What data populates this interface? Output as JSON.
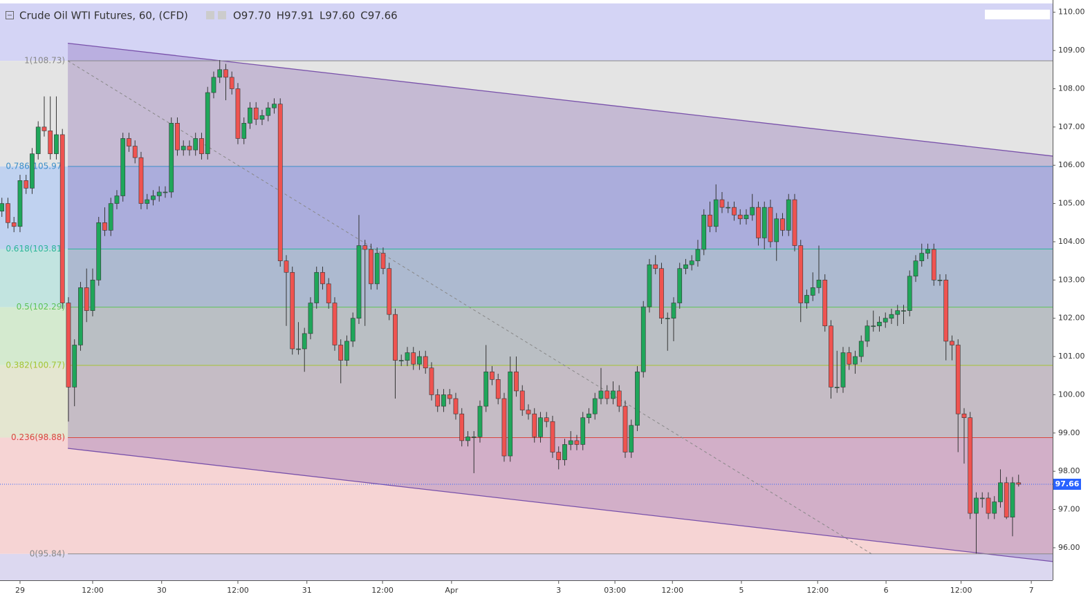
{
  "chart_data": {
    "type": "candlestick",
    "title": "Crude Oil WTI Futures, 60, (CFD)",
    "ohlc_labels": [
      "O97.70",
      "H97.91",
      "L97.60",
      "C97.66"
    ],
    "up_color": "#1fa65a",
    "down_color": "#ef5350",
    "wick_color": "#333333",
    "x": [
      0,
      1,
      2,
      3,
      4,
      5,
      6,
      7,
      8,
      9,
      10,
      11,
      12,
      13,
      14,
      15,
      16,
      17,
      18,
      19,
      20,
      21,
      22,
      23,
      24,
      25,
      26,
      27,
      28,
      29,
      30,
      31,
      32,
      33,
      34,
      35,
      36,
      37,
      38,
      39,
      40,
      41,
      42,
      43,
      44,
      45,
      46,
      47,
      48,
      49,
      50,
      51,
      52,
      53,
      54,
      55,
      56,
      57,
      58,
      59,
      60,
      61,
      62,
      63,
      64,
      65,
      66,
      67,
      68,
      69,
      70,
      71,
      72,
      73,
      74,
      75,
      76,
      77,
      78,
      79,
      80,
      81,
      82,
      83,
      84,
      85,
      86,
      87,
      88,
      89,
      90,
      91,
      92,
      93,
      94,
      95,
      96,
      97,
      98,
      99,
      100,
      101,
      102,
      103,
      104,
      105,
      106,
      107,
      108,
      109,
      110,
      111,
      112,
      113,
      114,
      115,
      116,
      117,
      118,
      119,
      120,
      121,
      122,
      123,
      124,
      125,
      126,
      127,
      128,
      129,
      130,
      131,
      132,
      133,
      134,
      135,
      136,
      137,
      138,
      139,
      140,
      141,
      142,
      143,
      144,
      145,
      146,
      147,
      148,
      149,
      150,
      151,
      152,
      153,
      154,
      155,
      156,
      157,
      158,
      159,
      160,
      161,
      162,
      163,
      164,
      165,
      166,
      167,
      168
    ],
    "candles": [
      [
        104.8,
        105.15,
        104.65,
        105
      ],
      [
        105,
        105.15,
        104.35,
        104.5
      ],
      [
        104.5,
        104.65,
        104.25,
        104.4
      ],
      [
        104.4,
        105.75,
        104.25,
        105.6
      ],
      [
        105.6,
        105.75,
        105.25,
        105.4
      ],
      [
        105.4,
        106.45,
        105.25,
        106.3
      ],
      [
        106.3,
        107.15,
        106.15,
        107
      ],
      [
        107,
        107.8,
        106.75,
        106.9
      ],
      [
        106.9,
        107.8,
        106.15,
        106.3
      ],
      [
        106.3,
        107.8,
        106.15,
        106.8
      ],
      [
        106.8,
        106.95,
        102.25,
        102.4
      ],
      [
        102.4,
        102.55,
        99.3,
        100.2
      ],
      [
        100.2,
        101.45,
        99.7,
        101.3
      ],
      [
        101.3,
        102.95,
        101.15,
        102.8
      ],
      [
        102.8,
        103.3,
        101.9,
        102.2
      ],
      [
        102.2,
        103.3,
        102.05,
        103
      ],
      [
        103,
        104.65,
        102.85,
        104.5
      ],
      [
        104.5,
        104.9,
        104.15,
        104.3
      ],
      [
        104.3,
        105.15,
        104.15,
        105
      ],
      [
        105,
        105.35,
        104.85,
        105.2
      ],
      [
        105.2,
        106.85,
        105.05,
        106.7
      ],
      [
        106.7,
        106.85,
        106.35,
        106.5
      ],
      [
        106.5,
        106.65,
        106.05,
        106.2
      ],
      [
        106.2,
        106.35,
        104.85,
        105
      ],
      [
        105,
        105.25,
        104.85,
        105.1
      ],
      [
        105.1,
        105.35,
        104.95,
        105.2
      ],
      [
        105.2,
        105.45,
        105.05,
        105.3
      ],
      [
        105.3,
        105.45,
        105.15,
        105.3
      ],
      [
        105.3,
        107.25,
        105.15,
        107.1
      ],
      [
        107.1,
        107.25,
        106.25,
        106.4
      ],
      [
        106.4,
        106.65,
        106.25,
        106.5
      ],
      [
        106.5,
        106.65,
        106.25,
        106.4
      ],
      [
        106.4,
        106.85,
        106.25,
        106.7
      ],
      [
        106.7,
        106.85,
        106.15,
        106.3
      ],
      [
        106.3,
        108.05,
        106.15,
        107.9
      ],
      [
        107.9,
        108.45,
        107.75,
        108.3
      ],
      [
        108.3,
        108.75,
        108.15,
        108.5
      ],
      [
        108.5,
        108.65,
        107.7,
        108.3
      ],
      [
        108.3,
        108.45,
        107.85,
        108
      ],
      [
        108,
        108.15,
        106.55,
        106.7
      ],
      [
        106.7,
        107.25,
        106.55,
        107.1
      ],
      [
        107.1,
        107.65,
        106.95,
        107.5
      ],
      [
        107.5,
        107.65,
        107.05,
        107.2
      ],
      [
        107.2,
        107.45,
        107.05,
        107.3
      ],
      [
        107.3,
        107.65,
        107.15,
        107.5
      ],
      [
        107.5,
        107.75,
        107.35,
        107.6
      ],
      [
        107.6,
        107.75,
        103.35,
        103.5
      ],
      [
        103.5,
        103.65,
        101.8,
        103.2
      ],
      [
        103.2,
        103.35,
        101.05,
        101.2
      ],
      [
        101.2,
        101.9,
        101.05,
        101.2
      ],
      [
        101.2,
        101.75,
        100.6,
        101.6
      ],
      [
        101.6,
        102.55,
        101.45,
        102.4
      ],
      [
        102.4,
        103.35,
        102.25,
        103.2
      ],
      [
        103.2,
        103.35,
        102.75,
        102.9
      ],
      [
        102.9,
        103.05,
        102.25,
        102.4
      ],
      [
        102.4,
        102.55,
        101.15,
        101.3
      ],
      [
        101.3,
        101.45,
        100.3,
        100.9
      ],
      [
        100.9,
        101.55,
        100.75,
        101.4
      ],
      [
        101.4,
        102.15,
        101.25,
        102
      ],
      [
        102,
        104.7,
        101.85,
        103.9
      ],
      [
        103.9,
        104.05,
        101.8,
        103.8
      ],
      [
        103.8,
        103.95,
        102.75,
        102.9
      ],
      [
        102.9,
        103.85,
        102.75,
        103.7
      ],
      [
        103.7,
        103.85,
        103.15,
        103.3
      ],
      [
        103.3,
        103.45,
        101.95,
        102.1
      ],
      [
        102.1,
        102.25,
        99.9,
        100.9
      ],
      [
        100.9,
        101.05,
        100.75,
        100.9
      ],
      [
        100.9,
        101.25,
        100.75,
        101.1
      ],
      [
        101.1,
        101.25,
        100.65,
        100.8
      ],
      [
        100.8,
        101.15,
        100.65,
        101
      ],
      [
        101,
        101.15,
        100.55,
        100.7
      ],
      [
        100.7,
        100.85,
        99.85,
        100
      ],
      [
        100,
        100.15,
        99.55,
        99.7
      ],
      [
        99.7,
        100.15,
        99.55,
        100
      ],
      [
        100,
        100.15,
        99.75,
        99.9
      ],
      [
        99.9,
        100.05,
        99.35,
        99.5
      ],
      [
        99.5,
        99.65,
        98.65,
        98.8
      ],
      [
        98.8,
        99.05,
        98.65,
        98.9
      ],
      [
        98.9,
        99.05,
        97.95,
        98.9
      ],
      [
        98.9,
        99.85,
        98.75,
        99.7
      ],
      [
        99.7,
        101.3,
        99.55,
        100.6
      ],
      [
        100.6,
        100.75,
        100.25,
        100.4
      ],
      [
        100.4,
        100.55,
        99.75,
        99.9
      ],
      [
        99.9,
        100.05,
        98.25,
        98.4
      ],
      [
        98.4,
        101,
        98.25,
        100.6
      ],
      [
        100.6,
        101,
        99.95,
        100.1
      ],
      [
        100.1,
        100.25,
        99.45,
        99.6
      ],
      [
        99.6,
        99.75,
        99.35,
        99.5
      ],
      [
        99.5,
        99.65,
        98.75,
        98.9
      ],
      [
        98.9,
        99.55,
        98.75,
        99.4
      ],
      [
        99.4,
        99.55,
        99.15,
        99.3
      ],
      [
        99.3,
        99.45,
        98.35,
        98.5
      ],
      [
        98.5,
        98.65,
        98.05,
        98.3
      ],
      [
        98.3,
        98.85,
        98.15,
        98.7
      ],
      [
        98.7,
        99.05,
        98.55,
        98.8
      ],
      [
        98.8,
        98.95,
        98.55,
        98.7
      ],
      [
        98.7,
        99.55,
        98.55,
        99.4
      ],
      [
        99.4,
        99.65,
        99.25,
        99.5
      ],
      [
        99.5,
        100.05,
        99.35,
        99.9
      ],
      [
        99.9,
        100.7,
        99.75,
        100.1
      ],
      [
        100.1,
        100.25,
        99.75,
        99.9
      ],
      [
        99.9,
        100.35,
        99.75,
        100.1
      ],
      [
        100.1,
        100.25,
        99.55,
        99.7
      ],
      [
        99.7,
        99.85,
        98.35,
        98.5
      ],
      [
        98.5,
        99.35,
        98.35,
        99.2
      ],
      [
        99.2,
        100.75,
        99.05,
        100.6
      ],
      [
        100.6,
        102.45,
        100.45,
        102.3
      ],
      [
        102.3,
        103.55,
        102.15,
        103.4
      ],
      [
        103.4,
        103.65,
        103.15,
        103.3
      ],
      [
        103.3,
        103.45,
        101.85,
        102
      ],
      [
        102,
        102.15,
        101.15,
        102
      ],
      [
        102,
        102.55,
        101.4,
        102.4
      ],
      [
        102.4,
        103.45,
        102.25,
        103.3
      ],
      [
        103.3,
        103.55,
        103.15,
        103.4
      ],
      [
        103.4,
        103.65,
        103.25,
        103.5
      ],
      [
        103.5,
        104.05,
        103.35,
        103.8
      ],
      [
        103.8,
        104.85,
        103.65,
        104.7
      ],
      [
        104.7,
        105.05,
        104.25,
        104.4
      ],
      [
        104.4,
        105.5,
        104.25,
        105.1
      ],
      [
        105.1,
        105.3,
        104.75,
        104.9
      ],
      [
        104.9,
        105.05,
        104.75,
        104.9
      ],
      [
        104.9,
        105.05,
        104.55,
        104.7
      ],
      [
        104.7,
        104.85,
        104.45,
        104.6
      ],
      [
        104.6,
        104.85,
        104.45,
        104.7
      ],
      [
        104.7,
        105.25,
        104.55,
        104.9
      ],
      [
        104.9,
        105.05,
        103.9,
        104.1
      ],
      [
        104.1,
        105.05,
        103.8,
        104.9
      ],
      [
        104.9,
        105.1,
        103.85,
        104
      ],
      [
        104,
        104.75,
        103.5,
        104.6
      ],
      [
        104.6,
        104.75,
        104.15,
        104.3
      ],
      [
        104.3,
        105.25,
        104.15,
        105.1
      ],
      [
        105.1,
        105.25,
        103.75,
        103.9
      ],
      [
        103.9,
        104.05,
        101.9,
        102.4
      ],
      [
        102.4,
        102.75,
        102.25,
        102.6
      ],
      [
        102.6,
        103.2,
        102.45,
        102.8
      ],
      [
        102.8,
        103.9,
        102.65,
        103
      ],
      [
        103,
        103.15,
        101.65,
        101.8
      ],
      [
        101.8,
        101.95,
        99.9,
        100.2
      ],
      [
        100.2,
        101.15,
        100.05,
        100.2
      ],
      [
        100.2,
        101.25,
        100.05,
        101.1
      ],
      [
        101.1,
        101.25,
        100.65,
        100.8
      ],
      [
        100.8,
        101.15,
        100.55,
        101
      ],
      [
        101,
        101.55,
        100.85,
        101.4
      ],
      [
        101.4,
        101.95,
        101.25,
        101.8
      ],
      [
        101.8,
        102.2,
        101.65,
        101.8
      ],
      [
        101.8,
        102.05,
        101.65,
        101.9
      ],
      [
        101.9,
        102.15,
        101.75,
        102
      ],
      [
        102,
        102.25,
        101.85,
        102.1
      ],
      [
        102.1,
        102.35,
        101.8,
        102.2
      ],
      [
        102.2,
        102.35,
        101.85,
        102.2
      ],
      [
        102.2,
        103.25,
        102.05,
        103.1
      ],
      [
        103.1,
        103.65,
        102.95,
        103.5
      ],
      [
        103.5,
        103.95,
        103.35,
        103.7
      ],
      [
        103.7,
        103.95,
        103.55,
        103.8
      ],
      [
        103.8,
        103.95,
        102.85,
        103
      ],
      [
        103,
        103.15,
        102.85,
        103
      ],
      [
        103,
        103.15,
        100.9,
        101.4
      ],
      [
        101.4,
        101.55,
        100.9,
        101.3
      ],
      [
        101.3,
        101.45,
        98.5,
        99.5
      ],
      [
        99.5,
        99.65,
        98.2,
        99.4
      ],
      [
        99.4,
        99.55,
        96.75,
        96.9
      ],
      [
        96.9,
        97.45,
        95.85,
        97.3
      ],
      [
        97.3,
        97.45,
        97.05,
        97.3
      ],
      [
        97.3,
        97.45,
        96.75,
        96.9
      ],
      [
        96.9,
        97.35,
        96.75,
        97.2
      ],
      [
        97.2,
        98.05,
        97.05,
        97.7
      ],
      [
        97.7,
        97.85,
        96.75,
        96.8
      ],
      [
        96.8,
        97.85,
        96.3,
        97.7
      ],
      [
        97.7,
        97.91,
        97.6,
        97.66
      ]
    ],
    "xlim": [
      -0.31,
      173.63
    ],
    "xticks": [
      {
        "value": 3,
        "label": "29"
      },
      {
        "value": 15,
        "label": "12:00"
      },
      {
        "value": 26.4,
        "label": "30"
      },
      {
        "value": 39,
        "label": "12:00"
      },
      {
        "value": 50.4,
        "label": "31"
      },
      {
        "value": 62.9,
        "label": "12:00"
      },
      {
        "value": 74.3,
        "label": "Apr"
      },
      {
        "value": 92,
        "label": "3"
      },
      {
        "value": 101.3,
        "label": "03:00"
      },
      {
        "value": 110.8,
        "label": "12:00"
      },
      {
        "value": 122.2,
        "label": "5"
      },
      {
        "value": 134.8,
        "label": "12:00"
      },
      {
        "value": 146.1,
        "label": "6"
      },
      {
        "value": 158.5,
        "label": "12:00"
      },
      {
        "value": 170.1,
        "label": "7"
      }
    ],
    "ylim": [
      95.15,
      110.23
    ],
    "yticks": [
      {
        "value": 96,
        "label": "96.00"
      },
      {
        "value": 97,
        "label": "97.00"
      },
      {
        "value": 98,
        "label": "98.00"
      },
      {
        "value": 99,
        "label": "99.00"
      },
      {
        "value": 100,
        "label": "100.00"
      },
      {
        "value": 101,
        "label": "101.00"
      },
      {
        "value": 102,
        "label": "102.00"
      },
      {
        "value": 103,
        "label": "103.00"
      },
      {
        "value": 104,
        "label": "104.00"
      },
      {
        "value": 105,
        "label": "105.00"
      },
      {
        "value": 106,
        "label": "106.00"
      },
      {
        "value": 107,
        "label": "107.00"
      },
      {
        "value": 108,
        "label": "108.00"
      },
      {
        "value": 109,
        "label": "109.00"
      },
      {
        "value": 110,
        "label": "110.00"
      }
    ],
    "above_fill": "#d4d4f5",
    "below_fill": "#dcd8f0",
    "fib_levels": [
      {
        "value": 108.73,
        "label": "1(108.73)",
        "color": "#888888",
        "fill": "#e4e4e4"
      },
      {
        "value": 105.97,
        "label": "0.786(105.97)",
        "color": "#3d8fc9",
        "fill": "#c0d2f0"
      },
      {
        "value": 103.81,
        "label": "0.618(103.81)",
        "color": "#2bb59a",
        "fill": "#c2e4e0"
      },
      {
        "value": 102.29,
        "label": "0.5(102.29)",
        "color": "#5cc35a",
        "fill": "#d4eacf"
      },
      {
        "value": 100.77,
        "label": "0.382(100.77)",
        "color": "#a5c434",
        "fill": "#e4e6d0"
      },
      {
        "value": 98.88,
        "label": "0.236(98.88)",
        "color": "#d9463e",
        "fill": "#f6d4d4"
      },
      {
        "value": 95.84,
        "label": "0(95.84)",
        "color": "#888888",
        "fill": "#dcd8f0"
      }
    ],
    "fib_x": 10.9,
    "channel": {
      "x": [
        10.9,
        173.63
      ],
      "upper": [
        109.19,
        106.24
      ],
      "lower": [
        98.6,
        95.64
      ],
      "color": "#7850aa"
    },
    "trend_line": {
      "x": [
        10.9,
        143.7
      ],
      "y": [
        108.73,
        95.84
      ],
      "color": "#888888"
    },
    "last_price": 97.66,
    "last_price_color": "#2962ff"
  }
}
